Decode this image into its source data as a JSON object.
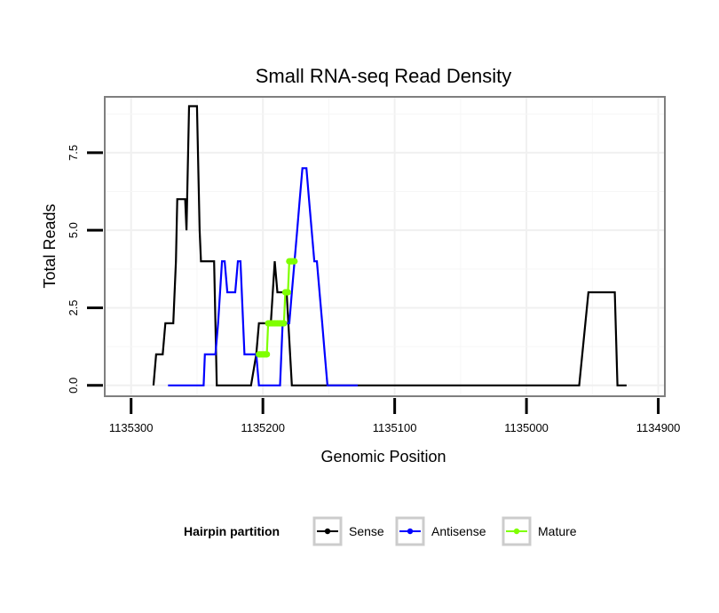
{
  "chart_data": {
    "type": "line",
    "title": "Small RNA-seq Read Density",
    "xlabel": "Genomic Position",
    "ylabel": "Total Reads",
    "xlim": [
      1135320,
      1134895
    ],
    "ylim": [
      -0.35,
      9.3
    ],
    "x_reversed": true,
    "xticks": [
      1135300,
      1135200,
      1135100,
      1135000,
      1134900
    ],
    "xtick_labels": [
      "1135300",
      "1135200",
      "1135100",
      "1135000",
      "1134900"
    ],
    "yticks": [
      0,
      2.5,
      5,
      7.5
    ],
    "ytick_labels": [
      "0.0",
      "2.5",
      "5.0",
      "7.5"
    ],
    "grid": true,
    "legend": {
      "title": "Hairpin partition",
      "position": "bottom",
      "entries": [
        "Sense",
        "Antisense",
        "Mature"
      ]
    },
    "series": [
      {
        "name": "Sense",
        "color": "#000000",
        "markers": false,
        "points": [
          [
            1135283,
            0
          ],
          [
            1135281,
            1
          ],
          [
            1135276,
            1
          ],
          [
            1135274,
            2
          ],
          [
            1135268,
            2
          ],
          [
            1135266,
            4
          ],
          [
            1135265,
            6
          ],
          [
            1135259,
            6
          ],
          [
            1135258,
            5
          ],
          [
            1135256,
            9
          ],
          [
            1135250,
            9
          ],
          [
            1135248,
            5
          ],
          [
            1135247,
            4
          ],
          [
            1135237,
            4
          ],
          [
            1135235,
            0
          ],
          [
            1135209,
            0
          ],
          [
            1135205,
            1
          ],
          [
            1135203,
            2
          ],
          [
            1135194,
            2
          ],
          [
            1135191,
            4
          ],
          [
            1135189,
            3
          ],
          [
            1135182,
            3
          ],
          [
            1135178,
            0
          ],
          [
            1135174,
            0
          ],
          [
            1135115,
            0
          ],
          [
            1135050,
            0
          ],
          [
            1134960,
            0
          ],
          [
            1134953,
            3
          ],
          [
            1134933,
            3
          ],
          [
            1134931,
            0
          ],
          [
            1134924,
            0
          ]
        ]
      },
      {
        "name": "Antisense",
        "color": "#0000ff",
        "markers": false,
        "points": [
          [
            1135272,
            0
          ],
          [
            1135245,
            0
          ],
          [
            1135244,
            1
          ],
          [
            1135236,
            1
          ],
          [
            1135234,
            2
          ],
          [
            1135231,
            4
          ],
          [
            1135229,
            4
          ],
          [
            1135227,
            3
          ],
          [
            1135221,
            3
          ],
          [
            1135219,
            4
          ],
          [
            1135217,
            4
          ],
          [
            1135214,
            1
          ],
          [
            1135205,
            1
          ],
          [
            1135203,
            0
          ],
          [
            1135195,
            0
          ],
          [
            1135187,
            0
          ],
          [
            1135185,
            2
          ],
          [
            1135180,
            2
          ],
          [
            1135178,
            3
          ],
          [
            1135176,
            4
          ],
          [
            1135174,
            5
          ],
          [
            1135172,
            6
          ],
          [
            1135170,
            7
          ],
          [
            1135167,
            7
          ],
          [
            1135165,
            6
          ],
          [
            1135163,
            5
          ],
          [
            1135161,
            4
          ],
          [
            1135159,
            4
          ],
          [
            1135157,
            3
          ],
          [
            1135155,
            2
          ],
          [
            1135153,
            1
          ],
          [
            1135151,
            0
          ],
          [
            1135128,
            0
          ]
        ]
      },
      {
        "name": "Mature",
        "color": "#7fff00",
        "markers": true,
        "points": [
          [
            1135203,
            1
          ],
          [
            1135202,
            1
          ],
          [
            1135201,
            1
          ],
          [
            1135200,
            1
          ],
          [
            1135199,
            1
          ],
          [
            1135198,
            1
          ],
          [
            1135197,
            1
          ],
          [
            1135196,
            2
          ],
          [
            1135195,
            2
          ],
          [
            1135194,
            2
          ],
          [
            1135193,
            2
          ],
          [
            1135192,
            2
          ],
          [
            1135191,
            2
          ],
          [
            1135190,
            2
          ],
          [
            1135189,
            2
          ],
          [
            1135188,
            2
          ],
          [
            1135187,
            2
          ],
          [
            1135186,
            2
          ],
          [
            1135185,
            2
          ],
          [
            1135184,
            2
          ],
          [
            1135183,
            3
          ],
          [
            1135182,
            3
          ],
          [
            1135181,
            3
          ],
          [
            1135180,
            4
          ],
          [
            1135179,
            4
          ],
          [
            1135178,
            4
          ],
          [
            1135177,
            4
          ],
          [
            1135176,
            4
          ]
        ]
      }
    ]
  }
}
